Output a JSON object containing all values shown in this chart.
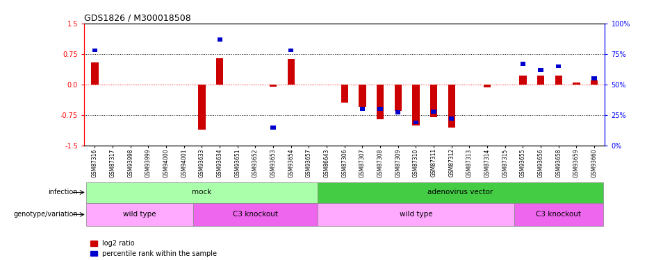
{
  "title": "GDS1826 / M300018508",
  "samples": [
    "GSM87316",
    "GSM87317",
    "GSM93998",
    "GSM93999",
    "GSM94000",
    "GSM94001",
    "GSM93633",
    "GSM93634",
    "GSM93651",
    "GSM93652",
    "GSM93653",
    "GSM93654",
    "GSM93657",
    "GSM86643",
    "GSM87306",
    "GSM87307",
    "GSM87308",
    "GSM87309",
    "GSM87310",
    "GSM87311",
    "GSM87312",
    "GSM87313",
    "GSM87314",
    "GSM87315",
    "GSM93655",
    "GSM93656",
    "GSM93658",
    "GSM93659",
    "GSM93660"
  ],
  "log2_ratio": [
    0.55,
    0.0,
    0.0,
    0.0,
    0.0,
    0.0,
    -1.1,
    0.65,
    0.0,
    0.0,
    -0.05,
    0.62,
    0.0,
    0.0,
    -0.45,
    -0.55,
    -0.85,
    -0.65,
    -1.0,
    -0.8,
    -1.05,
    0.0,
    -0.07,
    0.0,
    0.22,
    0.22,
    0.22,
    0.05,
    0.1
  ],
  "percentile": [
    78,
    0,
    0,
    0,
    0,
    0,
    0,
    87,
    0,
    0,
    15,
    78,
    0,
    0,
    0,
    30,
    30,
    27,
    19,
    28,
    22,
    0,
    0,
    0,
    67,
    62,
    65,
    0,
    55
  ],
  "infection_groups": [
    {
      "label": "mock",
      "start": 0,
      "end": 12,
      "color": "#aaffaa"
    },
    {
      "label": "adenovirus vector",
      "start": 13,
      "end": 28,
      "color": "#44cc44"
    }
  ],
  "genotype_groups": [
    {
      "label": "wild type",
      "start": 0,
      "end": 5,
      "color": "#ffaaff"
    },
    {
      "label": "C3 knockout",
      "start": 6,
      "end": 12,
      "color": "#ee66ee"
    },
    {
      "label": "wild type",
      "start": 13,
      "end": 23,
      "color": "#ffaaff"
    },
    {
      "label": "C3 knockout",
      "start": 24,
      "end": 28,
      "color": "#ee66ee"
    }
  ],
  "ylim": [
    -1.5,
    1.5
  ],
  "yticks_left": [
    -1.5,
    -0.75,
    0.0,
    0.75,
    1.5
  ],
  "yticks_right_vals": [
    -1.5,
    -0.75,
    0.0,
    0.75,
    1.5
  ],
  "yticks_right_labels": [
    "0%",
    "25%",
    "50%",
    "75%",
    "100%"
  ],
  "hlines_dotted": [
    0.75,
    -0.75
  ],
  "bar_color": "#cc0000",
  "blue_color": "#0000cc",
  "legend_labels": [
    "log2 ratio",
    "percentile rank within the sample"
  ]
}
